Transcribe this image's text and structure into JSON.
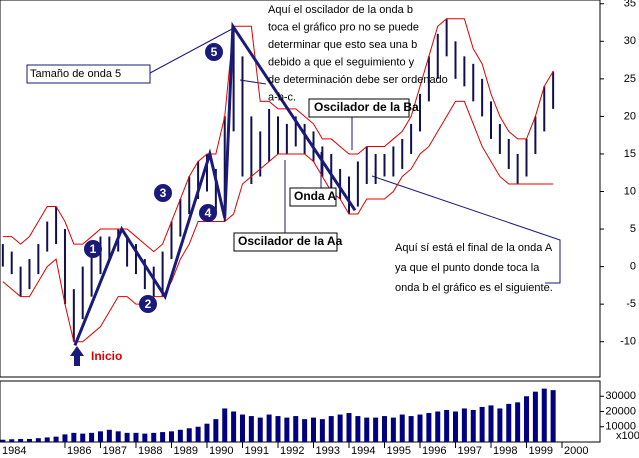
{
  "chart_data": [
    {
      "type": "ohlc",
      "x": [
        1984.25,
        1984.5,
        1984.75,
        1985,
        1985.25,
        1985.5,
        1985.75,
        1986,
        1986.25,
        1986.5,
        1986.75,
        1987,
        1987.25,
        1987.5,
        1987.75,
        1988,
        1988.25,
        1988.5,
        1988.75,
        1989,
        1989.25,
        1989.5,
        1989.75,
        1990,
        1990.25,
        1990.5,
        1990.75,
        1991,
        1991.25,
        1991.5,
        1991.75,
        1992,
        1992.25,
        1992.5,
        1992.75,
        1993,
        1993.25,
        1993.5,
        1993.75,
        1994,
        1994.25,
        1994.5,
        1994.75,
        1995,
        1995.25,
        1995.5,
        1995.75,
        1996,
        1996.25,
        1996.5,
        1996.75,
        1997,
        1997.25,
        1997.5,
        1997.75,
        1998,
        1998.25,
        1998.5,
        1998.75,
        1999,
        1999.25,
        1999.5,
        1999.75
      ],
      "high": [
        3,
        2,
        0,
        1,
        3,
        6,
        8,
        5,
        -3,
        0,
        2,
        4,
        4,
        5,
        4,
        3,
        1,
        0,
        2,
        6,
        9,
        12,
        14,
        15,
        13,
        20,
        32,
        28,
        20,
        18,
        21,
        20,
        19,
        20,
        19,
        18,
        16,
        15,
        13,
        12,
        14,
        16,
        15,
        15,
        16,
        17,
        19,
        23,
        28,
        31,
        33,
        30,
        28,
        27,
        25,
        22,
        19,
        17,
        15,
        17,
        20,
        24,
        26
      ],
      "low": [
        0,
        -1,
        -4,
        -3,
        -1,
        2,
        3,
        -5,
        -10,
        -7,
        -4,
        -1,
        1,
        2,
        0,
        -1,
        -3,
        -4,
        -4,
        1,
        4,
        7,
        9,
        10,
        7,
        6,
        18,
        12,
        11,
        12,
        14,
        15,
        15,
        16,
        15,
        14,
        12,
        10,
        9,
        7,
        8,
        11,
        11,
        12,
        12,
        13,
        15,
        18,
        22,
        25,
        28,
        25,
        24,
        22,
        20,
        17,
        15,
        13,
        11,
        12,
        15,
        18,
        21
      ],
      "upper_band": [
        4,
        4,
        3,
        4,
        6,
        8,
        8,
        6,
        3,
        3,
        4,
        5,
        5,
        5,
        5,
        4,
        3,
        2,
        3,
        6,
        9,
        12,
        14,
        15,
        15,
        20,
        32,
        32,
        32,
        22,
        22,
        21,
        21,
        21,
        20,
        19,
        17,
        17,
        16,
        15,
        15,
        16,
        16,
        16,
        17,
        18,
        20,
        24,
        28,
        32,
        33,
        33,
        33,
        29,
        27,
        23,
        20,
        18,
        17,
        17,
        20,
        24,
        26
      ],
      "lower_band": [
        -2,
        -3,
        -4,
        -4,
        -2,
        0,
        1,
        -5,
        -10,
        -10,
        -9,
        -8,
        -6,
        -4,
        -4,
        -5,
        -5,
        -4,
        -4,
        -2,
        1,
        3,
        6,
        6,
        6,
        6,
        7,
        11,
        12,
        13,
        14,
        15,
        15,
        15,
        15,
        14,
        12,
        10,
        9,
        7,
        7,
        9,
        9,
        9,
        10,
        12,
        13,
        15,
        16,
        18,
        20,
        22,
        22,
        19,
        16,
        14,
        12,
        11,
        11,
        11,
        11,
        11,
        11
      ],
      "waves": {
        "x": [
          1986.28,
          1987.6,
          1988.82,
          1990.08,
          1990.5,
          1990.73,
          1994.17
        ],
        "y": [
          -10.5,
          5,
          -4,
          15,
          6.5,
          32,
          7.5
        ],
        "labels": [
          "1",
          "2",
          "3",
          "4",
          "5"
        ]
      },
      "bar_color": "#101050",
      "band_color": "#e00000",
      "wave_color": "#1a1a7a",
      "xlim": [
        1984.17,
        2001.07
      ],
      "xticks": [
        1984,
        1986,
        1987,
        1988,
        1989,
        1990,
        1991,
        1992,
        1993,
        1994,
        1995,
        1996,
        1997,
        1998,
        1999,
        2000
      ],
      "ylim": [
        -14.7,
        35.5
      ],
      "yticks": [
        -10,
        -5,
        0,
        5,
        10,
        15,
        20,
        25,
        30,
        35
      ],
      "annotations": [
        {
          "lines": [
            "Aquí el oscilador de la onda b",
            "toca el gráfico pro no se puede",
            "determinar que esto sea una b",
            "debido a que el seguimiento y",
            "de determinación debe ser ordenado",
            "a-b-c."
          ]
        },
        {
          "lines": [
            "Tamaño de onda 5"
          ]
        },
        {
          "lines": [
            "Oscilador de la Ba"
          ]
        },
        {
          "lines": [
            "Onda A"
          ]
        },
        {
          "lines": [
            "Oscilador de la Aa"
          ]
        },
        {
          "lines": [
            "Aquí sí está el final de la onda A",
            "ya que el punto donde toca la",
            "onda b el gráfico es el siguiente."
          ]
        },
        {
          "lines": [
            "Inicio"
          ]
        }
      ]
    },
    {
      "type": "bar",
      "values": [
        1500,
        1800,
        2000,
        2000,
        2500,
        3000,
        3500,
        5000,
        6000,
        5500,
        6000,
        7000,
        8000,
        7000,
        6000,
        6000,
        5500,
        6000,
        6500,
        7000,
        8000,
        9000,
        10000,
        12000,
        15000,
        22000,
        20000,
        18000,
        17000,
        16000,
        18000,
        17000,
        16000,
        17000,
        15000,
        16000,
        15000,
        17000,
        18000,
        19000,
        17000,
        16000,
        16000,
        17000,
        16000,
        18000,
        17000,
        18000,
        19000,
        20000,
        21000,
        20000,
        22000,
        21000,
        23000,
        24000,
        22000,
        25000,
        26000,
        30000,
        33000,
        35000,
        34000
      ],
      "color": "#000080",
      "ylim": [
        0,
        40000
      ],
      "yticks": [
        10000,
        20000,
        30000
      ],
      "unit": "x100"
    }
  ]
}
